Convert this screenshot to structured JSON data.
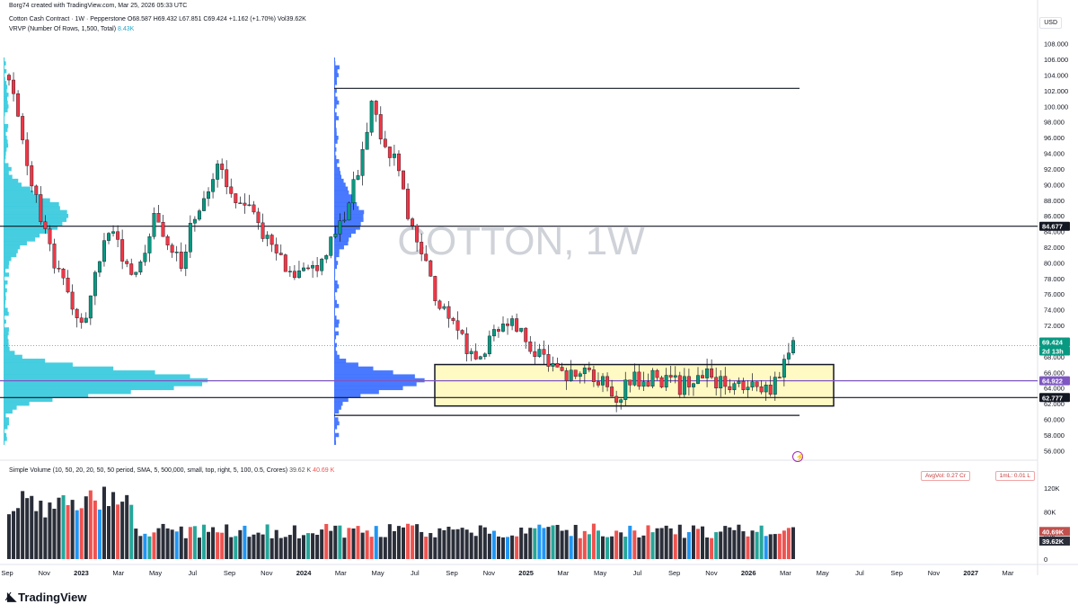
{
  "header": {
    "credit": "Borg74 created with TradingView.com, Mar 25, 2026 05:33 UTC",
    "legend_main": "Cotton Cash Contract · 1W · Pepperstone  O68.587  H69.432  L67.851  C69.424  +1.162 (+1.70%)  Vol39.62K",
    "legend_vrvp": "VRVP (Number Of Rows, 1,500, Total)",
    "legend_vrvp_value": "8.43K",
    "currency": "USD"
  },
  "watermark": "COTTON, 1W",
  "volume_panel": {
    "legend": "Simple Volume (10, 50, 20, 20, 50, 50 period, SMA, 5, 500,000, small, top, right, 5, 100, 0.5, Crores)",
    "legend_val1": "39.62 K",
    "legend_val2": "40.69 K",
    "tag_avgvol": "AvgVol: 0.27 Cr",
    "tag_1ml": "1mL: 0.01 L",
    "axis_ticks": [
      "120K",
      "80K",
      "40K",
      "0"
    ],
    "badges": [
      {
        "text": "40.69K",
        "color": "#c0504d"
      },
      {
        "text": "39.62K",
        "color": "#2a2e39"
      }
    ]
  },
  "price_badges": [
    {
      "text": "84.677",
      "color": "#131722"
    },
    {
      "text": "69.424",
      "color": "#089981"
    },
    {
      "text": "2d 13h",
      "color": "#089981"
    },
    {
      "text": "64.922",
      "color": "#7e57c2"
    },
    {
      "text": "62.777",
      "color": "#131722"
    }
  ],
  "logo": "TradingView",
  "colors": {
    "up": "#089981",
    "down": "#f23645",
    "vol_up": "#26a69a",
    "vol_down": "#ef5350",
    "vol_neutral": "#2a2e39",
    "vol_high": "#2196f3",
    "profile1": "#26c6da",
    "profile2": "#2962ff",
    "zone": "#fff9c4"
  },
  "chart_data": {
    "type": "candlestick",
    "title": "Cotton Cash Contract · 1W · Pepperstone",
    "y_axis_ticks": [
      "108.000",
      "106.000",
      "104.000",
      "102.000",
      "100.000",
      "98.000",
      "96.000",
      "94.000",
      "92.000",
      "90.000",
      "88.000",
      "86.000",
      "84.000",
      "82.000",
      "80.000",
      "78.000",
      "76.000",
      "74.000",
      "72.000",
      "70.000",
      "68.000",
      "66.000",
      "64.000",
      "62.000",
      "60.000",
      "58.000",
      "56.000"
    ],
    "ylim": [
      55,
      109
    ],
    "x_axis_ticks": [
      "Sep",
      "Nov",
      "2023",
      "Mar",
      "May",
      "Jul",
      "Sep",
      "Nov",
      "2024",
      "Mar",
      "May",
      "Jul",
      "Sep",
      "Nov",
      "2025",
      "Mar",
      "May",
      "Jul",
      "Sep",
      "Nov",
      "2026",
      "Mar",
      "May",
      "Jul",
      "Sep",
      "Nov",
      "2027",
      "Mar"
    ],
    "horizontal_lines": [
      {
        "price": 84.677,
        "label": "84.677"
      },
      {
        "price": 64.922,
        "label": "64.922"
      },
      {
        "price": 62.777,
        "label": "62.777"
      },
      {
        "price": 102.3
      },
      {
        "price": 60.5
      }
    ],
    "zone": {
      "top": 67.0,
      "bottom": 61.7
    },
    "last_close": 69.424,
    "key_levels_approx": [
      {
        "period": "Sep 2022",
        "price": 102
      },
      {
        "period": "Feb 2024",
        "price": 101
      },
      {
        "period": "Jul 2024",
        "price": 67
      },
      {
        "period": "Mar 2025",
        "price": 61
      },
      {
        "period": "Mar 2026",
        "price": 69.4
      }
    ],
    "series": [
      {
        "name": "price_path",
        "values": [
          104,
          98,
          92,
          88,
          84,
          80,
          78,
          74,
          72,
          76,
          80,
          84,
          82,
          80,
          78,
          82,
          86,
          84,
          82,
          80,
          84,
          86,
          90,
          92,
          90,
          88,
          88,
          86,
          84,
          82,
          80,
          78,
          78,
          80,
          80,
          82,
          84,
          86,
          90,
          94,
          100,
          96,
          94,
          92,
          86,
          82,
          80,
          76,
          74,
          72,
          70,
          68,
          68,
          70,
          72,
          73,
          72,
          70,
          69,
          68,
          67,
          66,
          66,
          65,
          66,
          65,
          64,
          63,
          64,
          65,
          64,
          66,
          65,
          65,
          64,
          65,
          65,
          66,
          65,
          65,
          64,
          64,
          65,
          63,
          64,
          66,
          69.4
        ]
      }
    ]
  }
}
